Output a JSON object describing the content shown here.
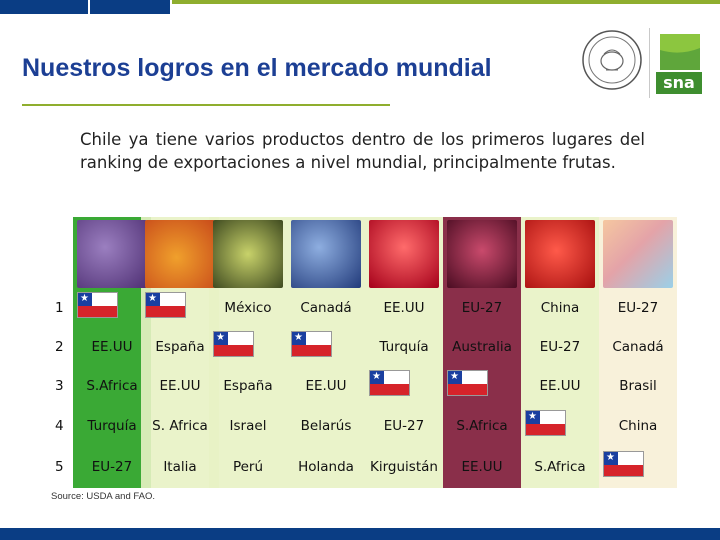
{
  "slide": {
    "title": "Nuestros logros en el mercado mundial",
    "intro": "Chile ya tiene varios productos dentro de los primeros lugares del ranking de exportaciones a nivel mundial, principalmente frutas.",
    "source": "Source: USDA and FAO."
  },
  "colors": {
    "title": "#1c3f94",
    "underline": "#8fae2e",
    "bottom_bar": "#0a3d84",
    "column_green": "#3aa935",
    "column_light": "#e8f2c4",
    "column_maroon": "#7d1836",
    "column_cream": "#f7f0d6"
  },
  "products": [
    {
      "icon": "grapes-icon"
    },
    {
      "icon": "plum-icon"
    },
    {
      "icon": "avocado-icon"
    },
    {
      "icon": "blueberries-icon"
    },
    {
      "icon": "cherries-icon"
    },
    {
      "icon": "wine-icon"
    },
    {
      "icon": "apple-icon"
    },
    {
      "icon": "pork-cuts-icon"
    }
  ],
  "ranking": [
    {
      "rank": "1",
      "cells": [
        "",
        "",
        "México",
        "Canadá",
        "EE.UU",
        "EU-27",
        "China",
        "EU-27"
      ]
    },
    {
      "rank": "2",
      "cells": [
        "EE.UU",
        "España",
        "",
        "",
        "Turquía",
        "Australia",
        "EU-27",
        "Canadá"
      ]
    },
    {
      "rank": "3",
      "cells": [
        "S.Africa",
        "EE.UU",
        "España",
        "EE.UU",
        "",
        "",
        "EE.UU",
        "Brasil"
      ]
    },
    {
      "rank": "4",
      "cells": [
        "Turquía",
        "S. Africa",
        "Israel",
        "Belarús",
        "EU-27",
        "S.Africa",
        "",
        "China"
      ]
    },
    {
      "rank": "5",
      "cells": [
        "EU-27",
        "Italia",
        "Perú",
        "Holanda",
        "Kirguistán",
        "EE.UU",
        "S.Africa",
        ""
      ]
    }
  ],
  "chile_flag_positions": [
    [
      0,
      0
    ],
    [
      0,
      1
    ],
    [
      1,
      2
    ],
    [
      1,
      3
    ],
    [
      2,
      4
    ],
    [
      2,
      5
    ],
    [
      3,
      6
    ],
    [
      4,
      7
    ]
  ]
}
